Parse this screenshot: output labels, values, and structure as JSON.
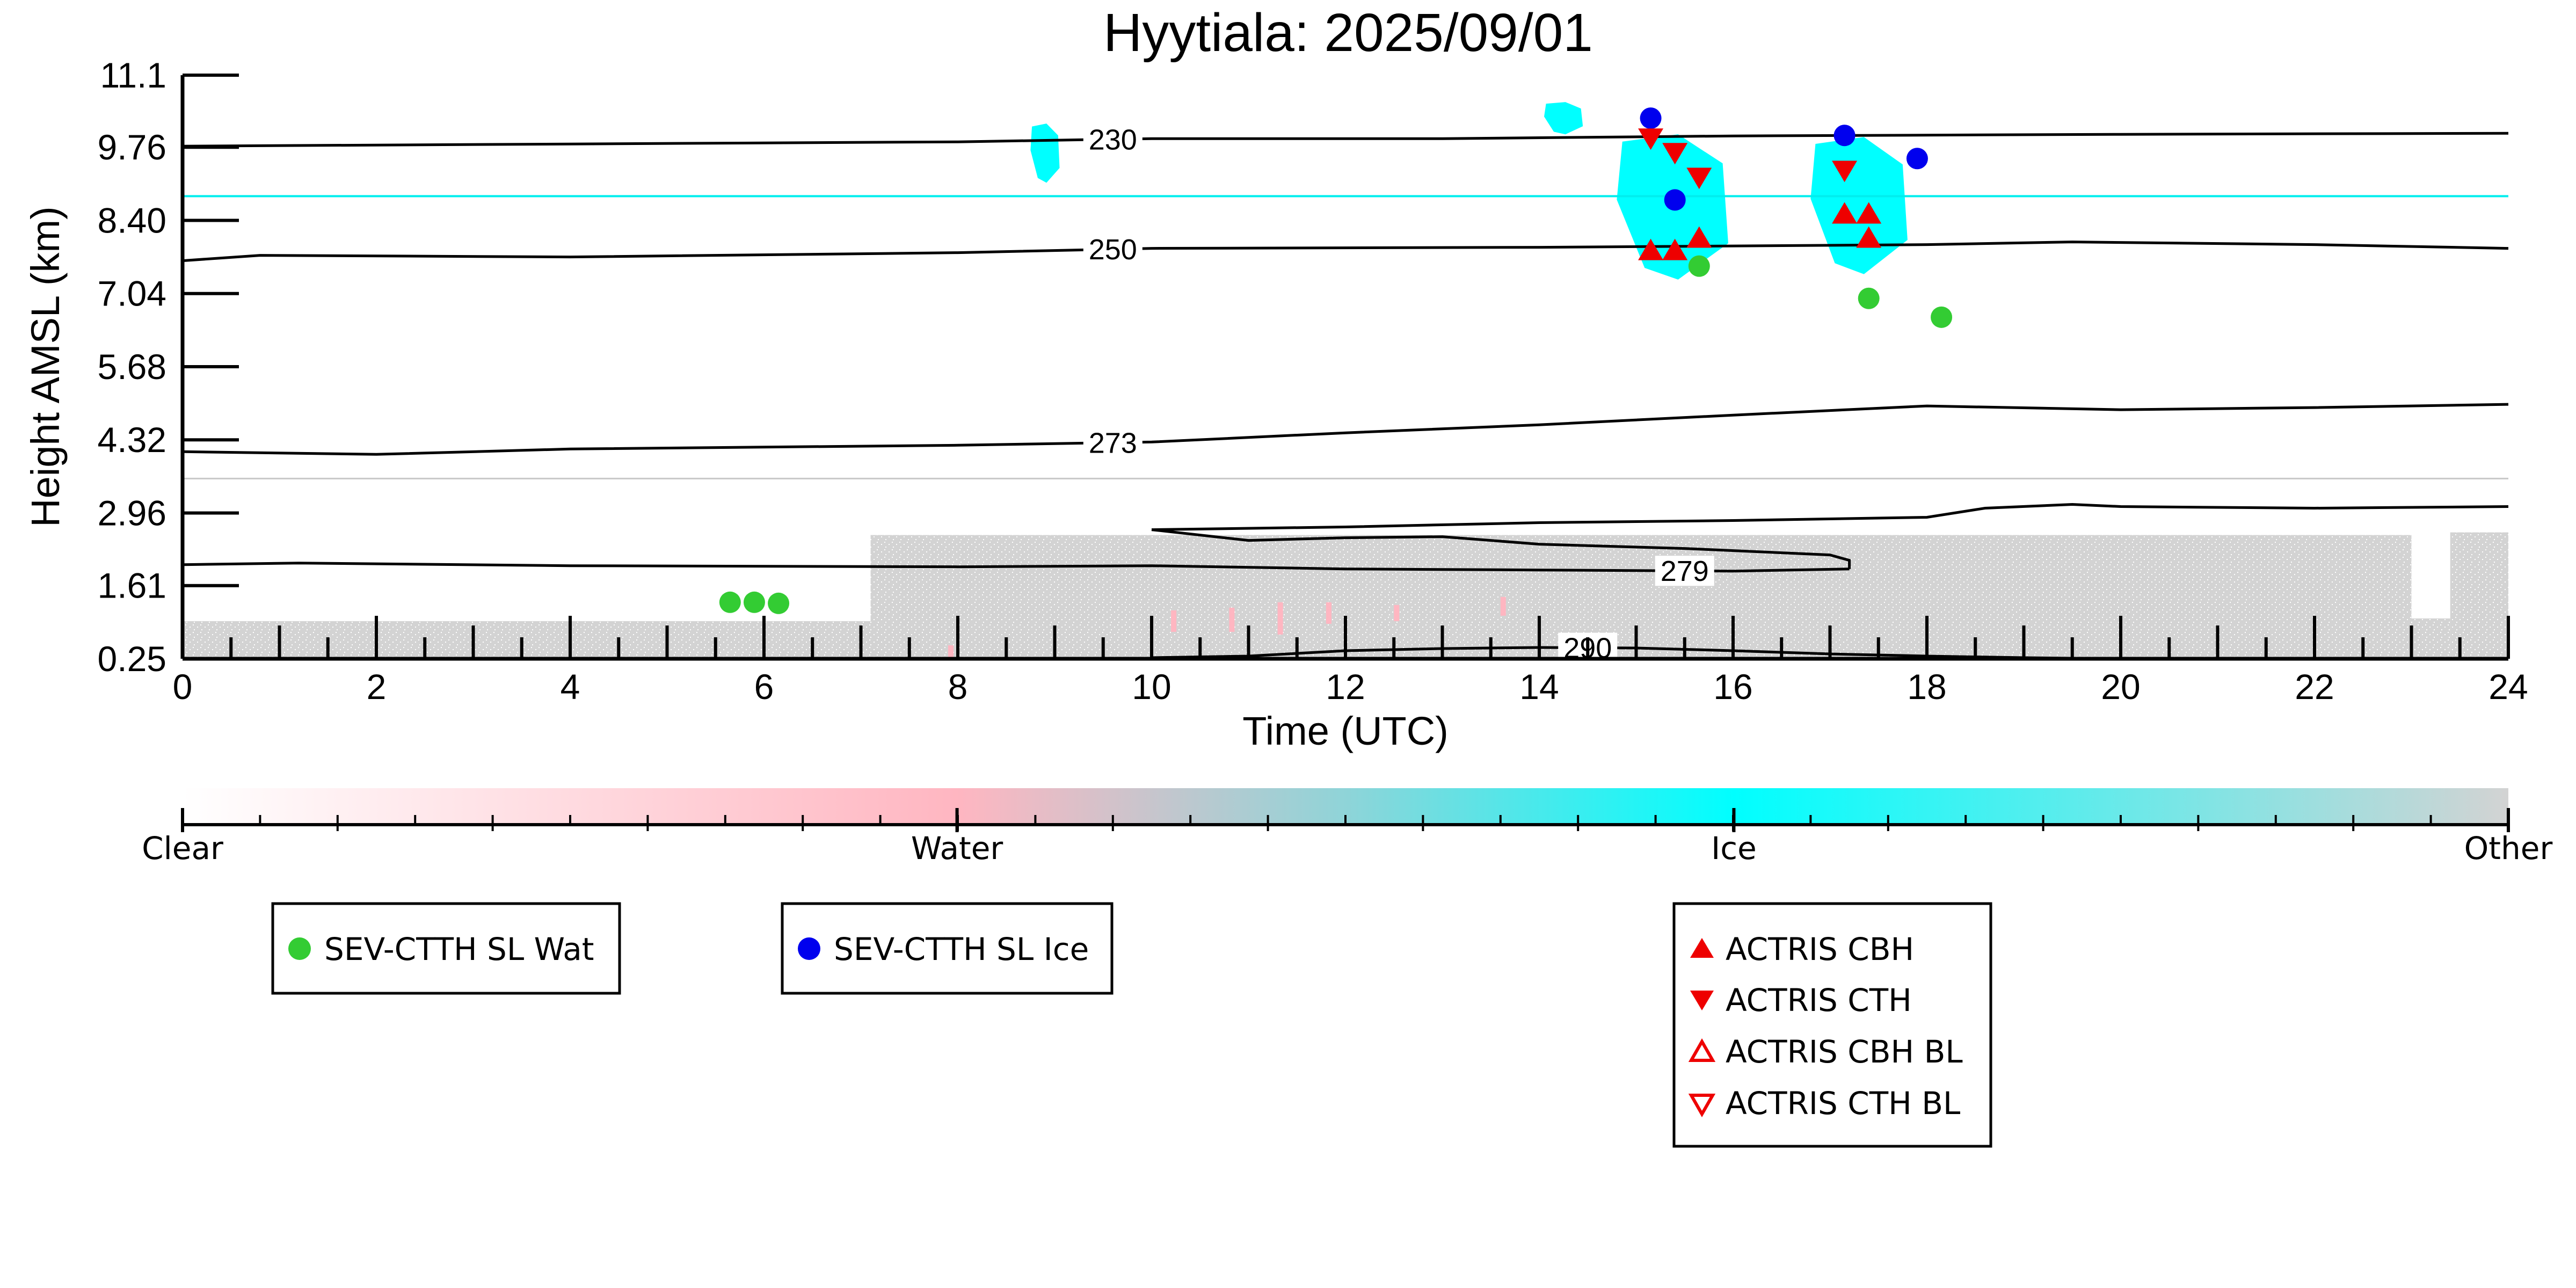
{
  "chart_data": {
    "type": "scatter",
    "title": "Hyytiala: 2025/09/01",
    "xlabel": "Time (UTC)",
    "ylabel": "Height AMSL (km)",
    "xlim": [
      0,
      24
    ],
    "ylim": [
      0.25,
      11.1
    ],
    "x_ticks": [
      0,
      2,
      4,
      6,
      8,
      10,
      12,
      14,
      16,
      18,
      20,
      22,
      24
    ],
    "y_ticks": [
      0.25,
      1.61,
      2.96,
      4.32,
      5.68,
      7.04,
      8.4,
      9.76,
      11.1
    ],
    "y_tick_labels": [
      "0.25",
      "1.61",
      "2.96",
      "4.32",
      "5.68",
      "7.04",
      "8.40",
      "9.76",
      "11.1"
    ],
    "grid": false,
    "colors": {
      "clear": "#ffffff",
      "water": "#ffb6c1",
      "ice": "#00ffff",
      "other": "#d3d3d3",
      "sev_water": "#33cc33",
      "sev_ice": "#0000ee",
      "actris": "#ee0000",
      "contour": "#000000"
    },
    "colorbar": {
      "labels": [
        "Clear",
        "Water",
        "Ice",
        "Other"
      ],
      "positions": [
        0,
        0.333,
        0.667,
        1.0
      ]
    },
    "temperature_contours": [
      {
        "label": "230",
        "label_x": 9.6,
        "points": [
          [
            0,
            9.78
          ],
          [
            4,
            9.82
          ],
          [
            8,
            9.86
          ],
          [
            10,
            9.92
          ],
          [
            13,
            9.92
          ],
          [
            16,
            9.97
          ],
          [
            20,
            10.0
          ],
          [
            24,
            10.02
          ]
        ]
      },
      {
        "label": "250",
        "label_x": 9.6,
        "points": [
          [
            0,
            7.65
          ],
          [
            0.8,
            7.75
          ],
          [
            4,
            7.72
          ],
          [
            8,
            7.8
          ],
          [
            10,
            7.88
          ],
          [
            14,
            7.9
          ],
          [
            18,
            7.95
          ],
          [
            19.5,
            8.0
          ],
          [
            22,
            7.95
          ],
          [
            24,
            7.88
          ]
        ]
      },
      {
        "label": "273",
        "label_x": 9.6,
        "points": [
          [
            0,
            4.1
          ],
          [
            2,
            4.05
          ],
          [
            4,
            4.15
          ],
          [
            8,
            4.22
          ],
          [
            10,
            4.28
          ],
          [
            12,
            4.45
          ],
          [
            14,
            4.6
          ],
          [
            16,
            4.78
          ],
          [
            18,
            4.95
          ],
          [
            20,
            4.88
          ],
          [
            22,
            4.92
          ],
          [
            24,
            4.98
          ]
        ]
      },
      {
        "label": "279",
        "label_x": 15.5,
        "points": [
          [
            0,
            2.0
          ],
          [
            1.2,
            2.03
          ],
          [
            4,
            1.98
          ],
          [
            8,
            1.96
          ],
          [
            10,
            1.98
          ],
          [
            12,
            1.92
          ],
          [
            14,
            1.9
          ],
          [
            16,
            1.88
          ],
          [
            17.2,
            1.92
          ]
        ]
      },
      {
        "label": "279",
        "label_x": -1,
        "points": [
          [
            10,
            2.65
          ],
          [
            11,
            2.45
          ],
          [
            12,
            2.5
          ],
          [
            13,
            2.52
          ],
          [
            14,
            2.38
          ],
          [
            15.5,
            2.3
          ],
          [
            17.0,
            2.18
          ],
          [
            17.2,
            2.08
          ],
          [
            17.2,
            1.92
          ]
        ]
      },
      {
        "label": "279",
        "label_x": -1,
        "points": [
          [
            10,
            2.65
          ],
          [
            12,
            2.7
          ],
          [
            14,
            2.78
          ],
          [
            16,
            2.82
          ],
          [
            18,
            2.88
          ],
          [
            18.6,
            3.05
          ],
          [
            19.5,
            3.12
          ],
          [
            20,
            3.08
          ],
          [
            22,
            3.05
          ],
          [
            24,
            3.08
          ]
        ]
      },
      {
        "label": "290",
        "label_x": 14.5,
        "points": [
          [
            10.0,
            0.27
          ],
          [
            11,
            0.3
          ],
          [
            12,
            0.4
          ],
          [
            13,
            0.44
          ],
          [
            14,
            0.46
          ],
          [
            15,
            0.45
          ],
          [
            16,
            0.4
          ],
          [
            17,
            0.34
          ],
          [
            18,
            0.3
          ],
          [
            19,
            0.27
          ],
          [
            20,
            0.25
          ]
        ]
      }
    ],
    "cyan_line_height": 8.85,
    "gray_line_height": 3.6,
    "other_regions": [
      {
        "x": [
          0,
          7.1
        ],
        "top": 0.95
      },
      {
        "x": [
          7.1,
          23
        ],
        "top": 2.55
      },
      {
        "x": [
          23,
          23.4
        ],
        "top": 1.0
      },
      {
        "x": [
          23.4,
          24
        ],
        "top": 2.6
      }
    ],
    "ice_regions": [
      {
        "x": [
          8.75,
          9.05
        ],
        "top": 10.2,
        "bottom": 9.1
      },
      {
        "x": [
          14.05,
          14.45
        ],
        "top": 10.6,
        "bottom": 10.0
      },
      {
        "x": [
          14.8,
          15.95
        ],
        "top": 10.0,
        "bottom": 7.3
      },
      {
        "x": [
          16.8,
          17.8
        ],
        "top": 9.95,
        "bottom": 7.4
      }
    ],
    "water_marks": [
      {
        "x": 7.9,
        "bottom": 0.25,
        "top": 0.5
      },
      {
        "x": 10.2,
        "bottom": 0.75,
        "top": 1.15
      },
      {
        "x": 10.8,
        "bottom": 0.75,
        "top": 1.2
      },
      {
        "x": 11.3,
        "bottom": 0.7,
        "top": 1.3
      },
      {
        "x": 11.8,
        "bottom": 0.9,
        "top": 1.3
      },
      {
        "x": 12.5,
        "bottom": 0.95,
        "top": 1.25
      },
      {
        "x": 13.6,
        "bottom": 1.05,
        "top": 1.4
      }
    ],
    "series": [
      {
        "name": "SEV-CTTH SL Wat",
        "marker": "circle",
        "color": "#33cc33",
        "x": [
          5.65,
          5.9,
          6.15,
          15.65,
          17.4,
          18.15
        ],
        "y": [
          1.3,
          1.3,
          1.28,
          7.55,
          6.95,
          6.6
        ]
      },
      {
        "name": "SEV-CTTH SL Ice",
        "marker": "circle",
        "color": "#0000ee",
        "x": [
          15.15,
          15.4,
          17.15,
          17.9
        ],
        "y": [
          10.3,
          8.78,
          9.98,
          9.55
        ]
      },
      {
        "name": "ACTRIS CBH",
        "marker": "triangle-up",
        "color": "#ee0000",
        "filled": true,
        "x": [
          15.15,
          15.4,
          15.65,
          17.15,
          17.4,
          17.4
        ],
        "y": [
          7.82,
          7.82,
          8.05,
          8.5,
          8.05,
          8.5
        ]
      },
      {
        "name": "ACTRIS CTH",
        "marker": "triangle-down",
        "color": "#ee0000",
        "filled": true,
        "x": [
          15.15,
          15.4,
          15.65,
          17.15
        ],
        "y": [
          9.95,
          9.68,
          9.22,
          9.35
        ]
      },
      {
        "name": "ACTRIS CBH BL",
        "marker": "triangle-up",
        "color": "#ee0000",
        "filled": false,
        "x": [],
        "y": []
      },
      {
        "name": "ACTRIS CTH BL",
        "marker": "triangle-down",
        "color": "#ee0000",
        "filled": false,
        "x": [],
        "y": []
      }
    ],
    "legends": [
      {
        "entries": [
          "SEV-CTTH SL Wat"
        ]
      },
      {
        "entries": [
          "SEV-CTTH SL Ice"
        ]
      },
      {
        "entries": [
          "ACTRIS CBH",
          "ACTRIS CTH",
          "ACTRIS CBH BL",
          "ACTRIS CTH BL"
        ]
      }
    ]
  }
}
